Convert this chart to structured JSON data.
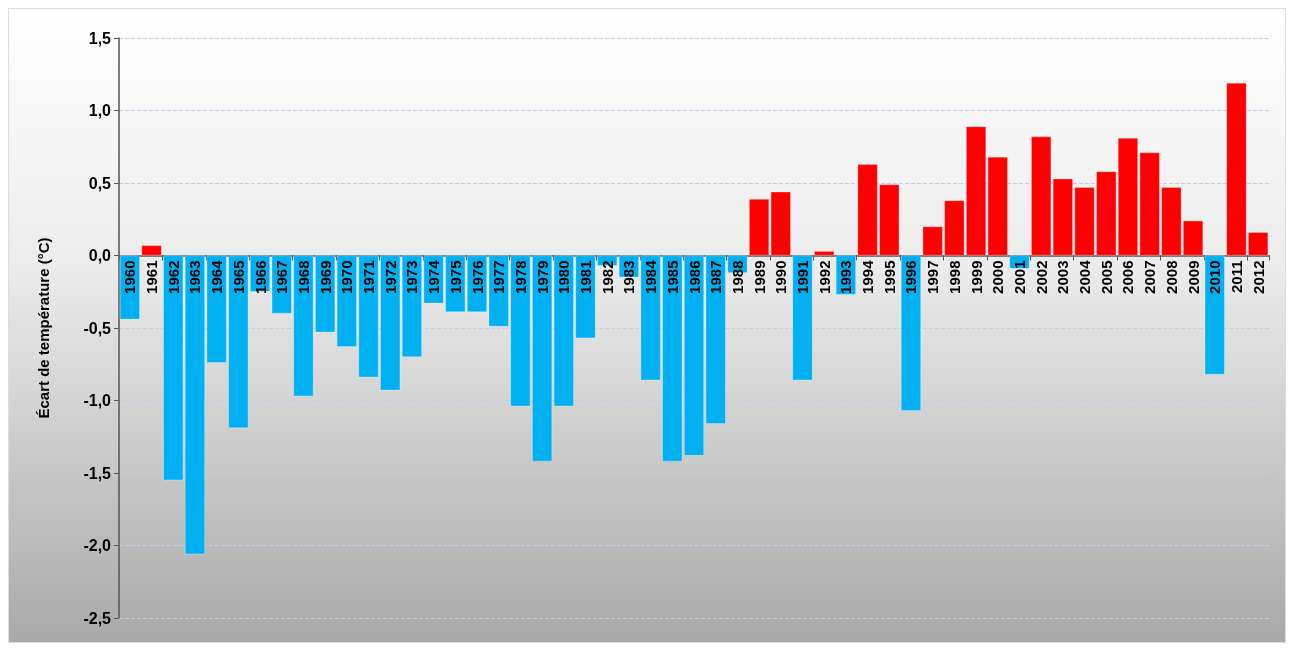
{
  "chart_data": {
    "type": "bar",
    "ylabel": "Écart de température (°C)",
    "categories": [
      "1960",
      "1961",
      "1962",
      "1963",
      "1964",
      "1965",
      "1966",
      "1967",
      "1968",
      "1969",
      "1970",
      "1971",
      "1972",
      "1973",
      "1974",
      "1975",
      "1976",
      "1977",
      "1978",
      "1979",
      "1980",
      "1981",
      "1982",
      "1983",
      "1984",
      "1985",
      "1986",
      "1987",
      "1988",
      "1989",
      "1990",
      "1991",
      "1992",
      "1993",
      "1994",
      "1995",
      "1996",
      "1997",
      "1998",
      "1999",
      "2000",
      "2001",
      "2002",
      "2003",
      "2004",
      "2005",
      "2006",
      "2007",
      "2008",
      "2009",
      "2010",
      "2011",
      "2012"
    ],
    "values": [
      -0.44,
      0.07,
      -1.55,
      -2.06,
      -0.74,
      -1.19,
      -0.25,
      -0.4,
      -0.97,
      -0.53,
      -0.63,
      -0.84,
      -0.93,
      -0.7,
      -0.33,
      -0.39,
      -0.39,
      -0.49,
      -1.04,
      -1.42,
      -1.04,
      -0.57,
      -0.07,
      -0.15,
      -0.86,
      -1.42,
      -1.38,
      -1.16,
      -0.12,
      0.39,
      0.44,
      -0.86,
      0.03,
      -0.27,
      0.63,
      0.49,
      -1.07,
      0.2,
      0.38,
      0.89,
      0.68,
      -0.09,
      0.82,
      0.53,
      0.47,
      0.58,
      0.81,
      0.71,
      0.47,
      0.24,
      -0.82,
      1.19,
      0.16
    ],
    "colors": [
      "#00b0f0",
      "#ff0000",
      "#00b0f0",
      "#00b0f0",
      "#00b0f0",
      "#00b0f0",
      "#00b0f0",
      "#00b0f0",
      "#00b0f0",
      "#00b0f0",
      "#00b0f0",
      "#00b0f0",
      "#00b0f0",
      "#00b0f0",
      "#00b0f0",
      "#00b0f0",
      "#00b0f0",
      "#00b0f0",
      "#00b0f0",
      "#00b0f0",
      "#00b0f0",
      "#00b0f0",
      "#00b0f0",
      "#00b0f0",
      "#00b0f0",
      "#00b0f0",
      "#00b0f0",
      "#00b0f0",
      "#00b0f0",
      "#ff0000",
      "#ff0000",
      "#00b0f0",
      "#ff0000",
      "#00b0f0",
      "#ff0000",
      "#ff0000",
      "#00b0f0",
      "#ff0000",
      "#ff0000",
      "#ff0000",
      "#ff0000",
      "#00b0f0",
      "#ff0000",
      "#ff0000",
      "#ff0000",
      "#ff0000",
      "#ff0000",
      "#ff0000",
      "#ff0000",
      "#ff0000",
      "#00b0f0",
      "#ff0000",
      "#ff0000"
    ],
    "ylim": [
      -2.5,
      1.5
    ],
    "yticks": [
      {
        "value": -2.5,
        "label": "-2,5"
      },
      {
        "value": -2,
        "label": "-2,0"
      },
      {
        "value": -1.5,
        "label": "-1,5"
      },
      {
        "value": -1,
        "label": "-1,0"
      },
      {
        "value": -0.5,
        "label": "-0,5"
      },
      {
        "value": 0,
        "label": "0,0"
      },
      {
        "value": 0.5,
        "label": "0,5"
      },
      {
        "value": 1,
        "label": "1,0"
      },
      {
        "value": 1.5,
        "label": "1,5"
      }
    ],
    "grid": "y"
  }
}
